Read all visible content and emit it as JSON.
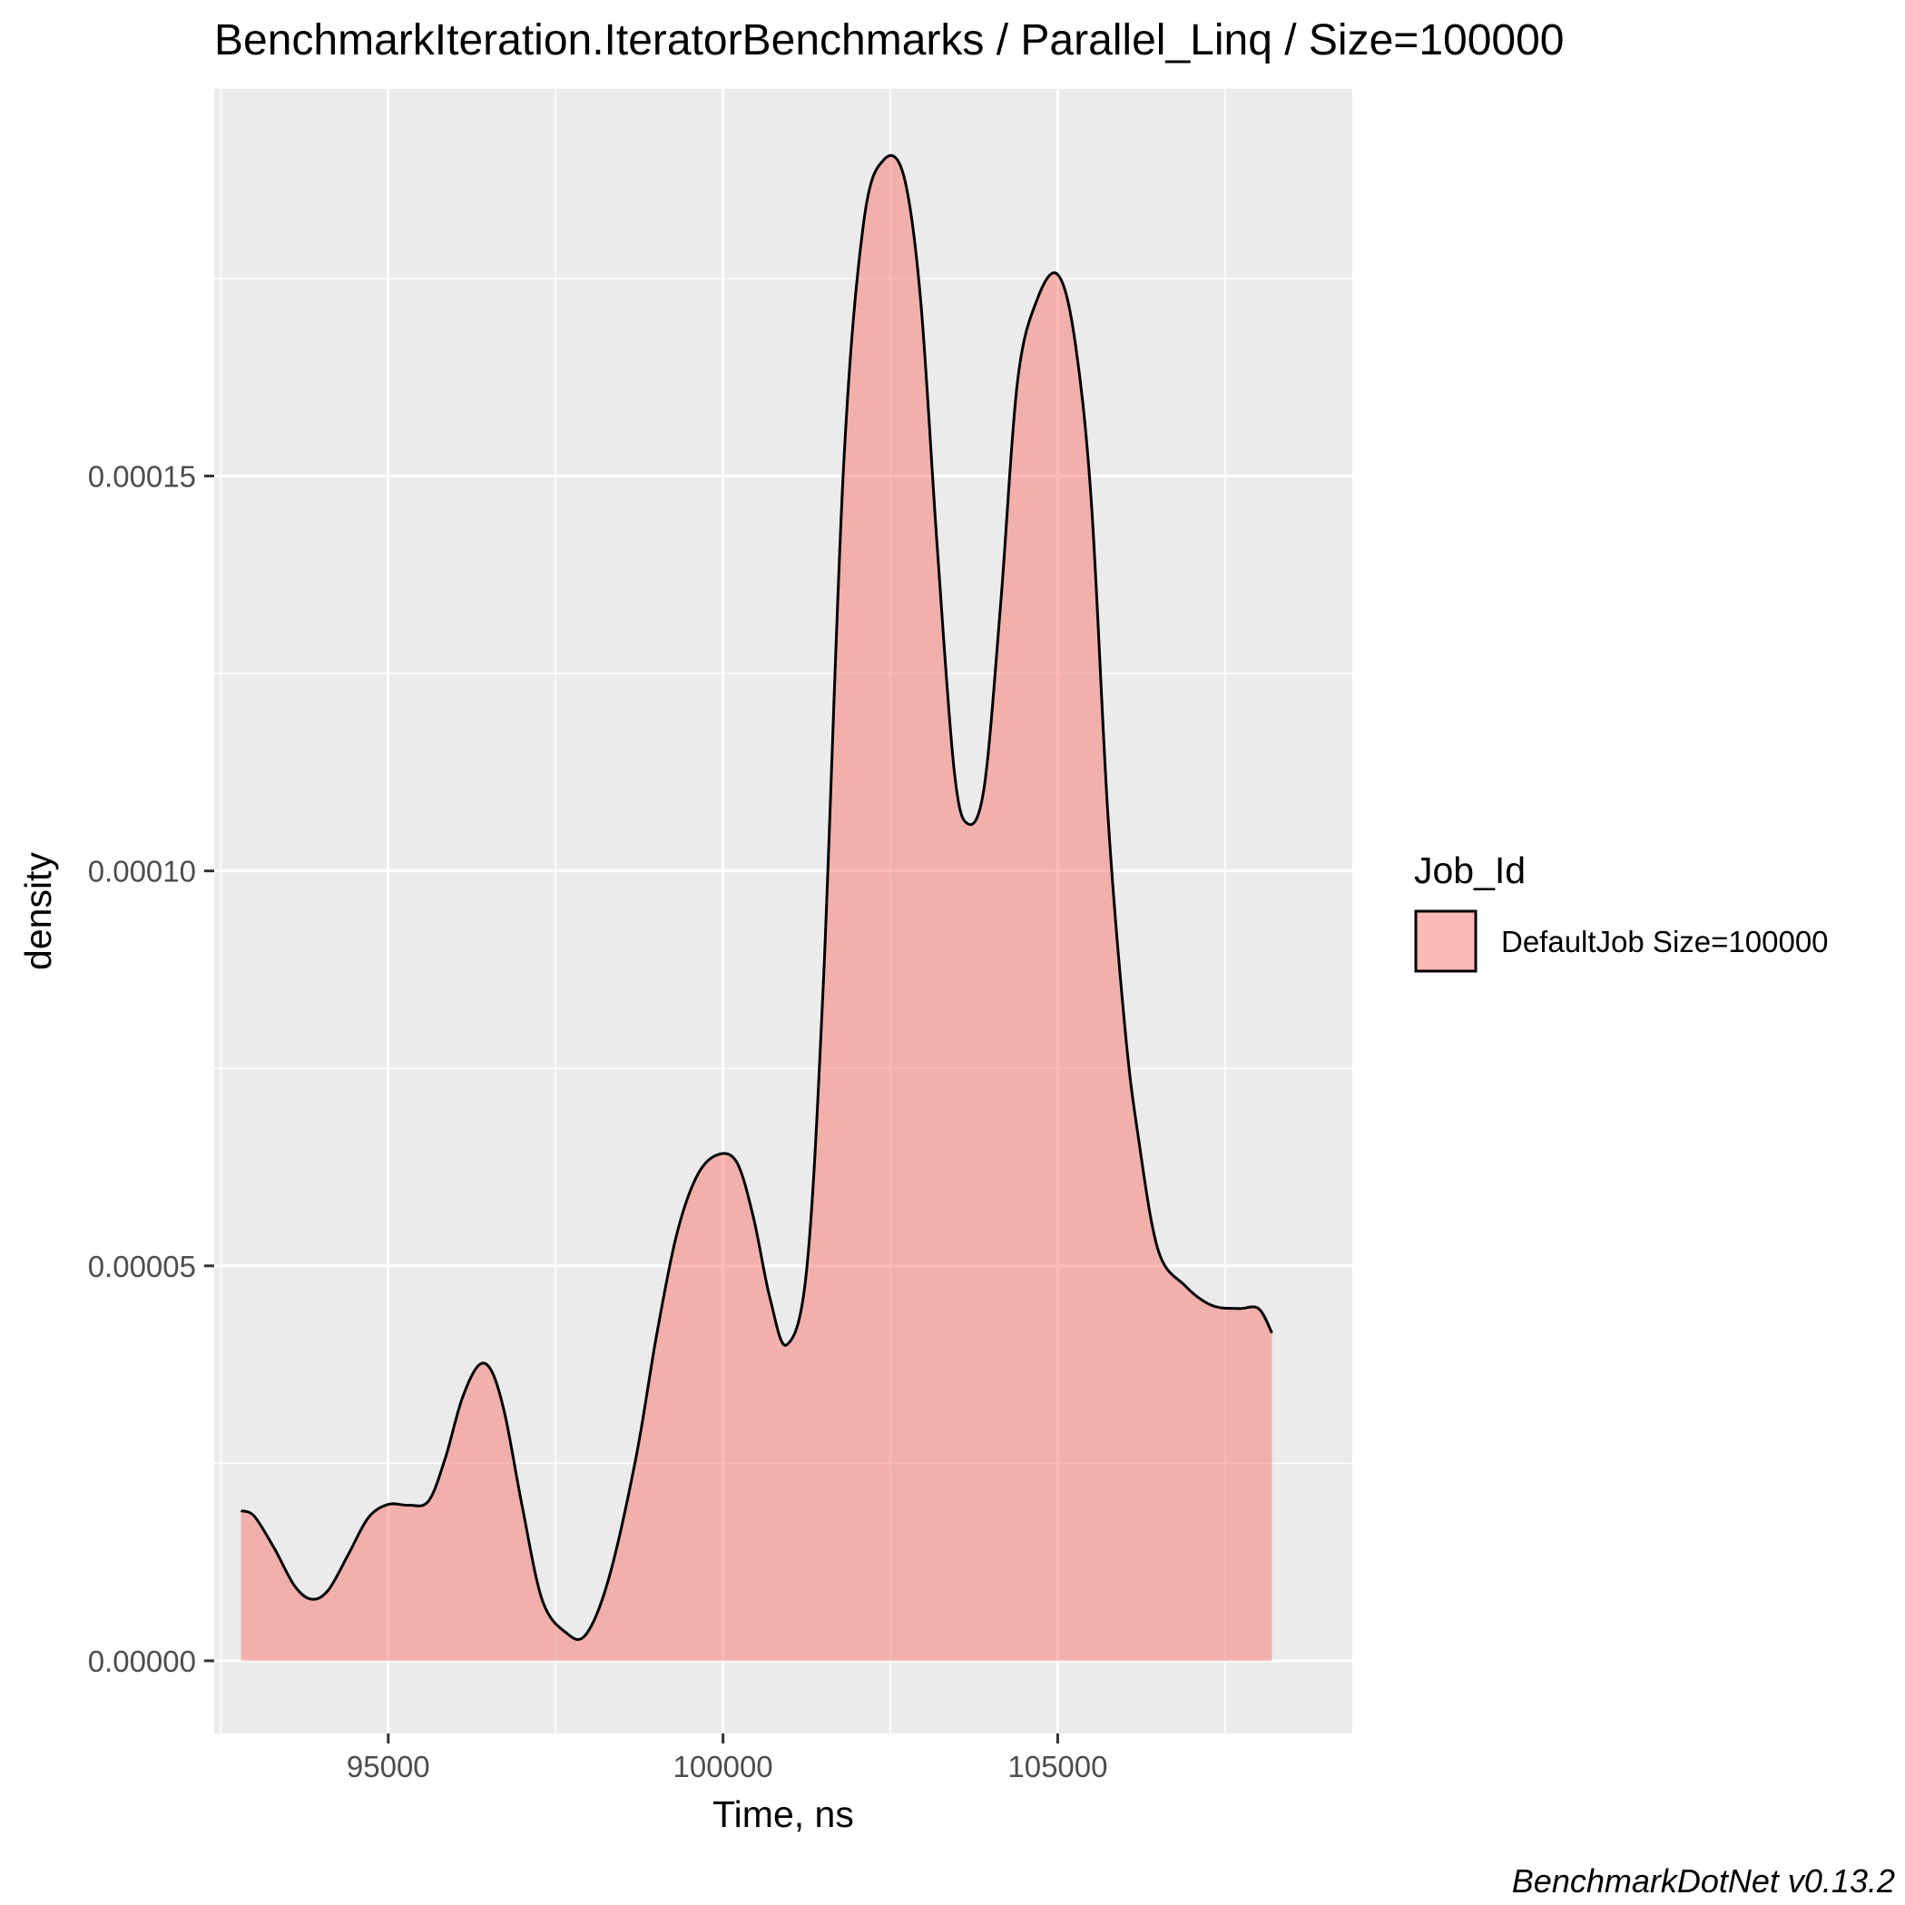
{
  "chart_data": {
    "type": "area",
    "title": "BenchmarkIteration.IteratorBenchmarks / Parallel_Linq / Size=100000",
    "xlabel": "Time, ns",
    "ylabel": "density",
    "xlim": [
      92400,
      109400
    ],
    "ylim": [
      -9.2e-06,
      0.000199
    ],
    "x_ticks": [
      95000,
      100000,
      105000
    ],
    "x_tick_labels": [
      "95000",
      "100000",
      "105000"
    ],
    "y_ticks": [
      0,
      5e-05,
      0.0001,
      0.00015
    ],
    "y_tick_labels": [
      "0.00000",
      "0.00005",
      "0.00010",
      "0.00015"
    ],
    "grid": true,
    "legend": {
      "title": "Job_Id",
      "position": "right",
      "entries": [
        "DefaultJob Size=100000"
      ]
    },
    "series": [
      {
        "name": "DefaultJob Size=100000",
        "color": "#F8766D",
        "x": [
          92800,
          93000,
          93300,
          93600,
          93850,
          94100,
          94400,
          94700,
          95000,
          95300,
          95600,
          95850,
          96100,
          96350,
          96550,
          96750,
          97000,
          97300,
          97650,
          97950,
          98300,
          98700,
          99000,
          99300,
          99600,
          99900,
          100200,
          100450,
          100700,
          100950,
          101250,
          101500,
          101800,
          102100,
          102400,
          102700,
          102950,
          103200,
          103450,
          103650,
          103900,
          104150,
          104400,
          104700,
          105000,
          105250,
          105500,
          105750,
          106000,
          106200,
          106500,
          106900,
          107300,
          107700,
          108000,
          108200
        ],
        "y": [
          1.9e-05,
          1.83e-05,
          1.42e-05,
          9.5e-06,
          7.8e-06,
          8.9e-06,
          1.34e-05,
          1.81e-05,
          1.98e-05,
          1.97e-05,
          2.02e-05,
          2.56e-05,
          3.31e-05,
          3.74e-05,
          3.66e-05,
          3.09e-05,
          1.96e-05,
          7.7e-06,
          3.6e-06,
          3.3e-06,
          1.06e-05,
          2.57e-05,
          4.08e-05,
          5.37e-05,
          6.12e-05,
          6.4e-05,
          6.32e-05,
          5.63e-05,
          4.6e-05,
          4e-05,
          4.95e-05,
          8.6e-05,
          0.000151,
          0.000182,
          0.00019,
          0.000188,
          0.0001725,
          0.000141,
          0.000113,
          0.000106,
          0.0001105,
          0.000134,
          0.000162,
          0.0001725,
          0.0001755,
          0.0001675,
          0.000147,
          0.000107,
          8.05e-05,
          6.65e-05,
          5.2e-05,
          4.75e-05,
          4.5e-05,
          4.46e-05,
          4.46e-05,
          4.15e-05
        ]
      }
    ],
    "caption": "BenchmarkDotNet v0.13.2",
    "colors": {
      "panel_background": "#EBEBEB",
      "grid_major": "#FFFFFF",
      "fill": "#F8766D",
      "outline": "#000000"
    }
  }
}
